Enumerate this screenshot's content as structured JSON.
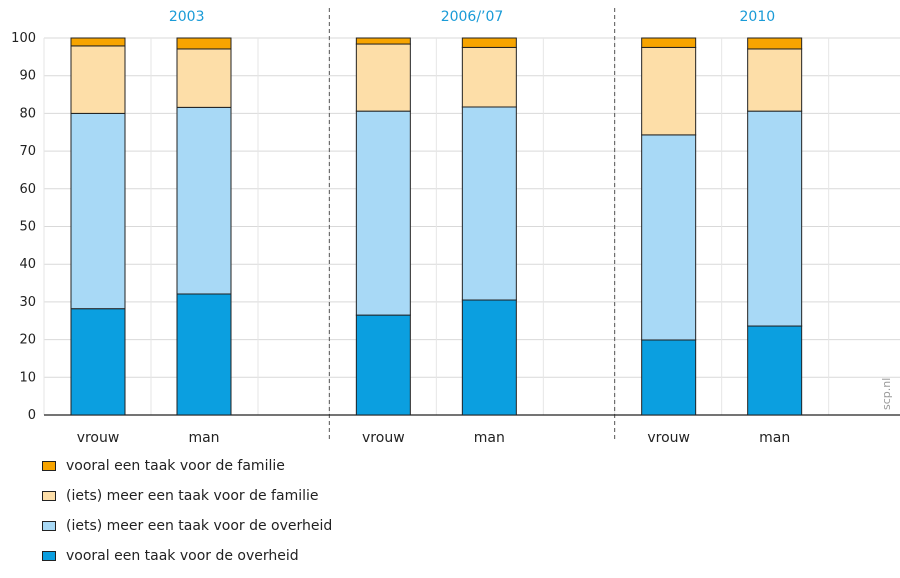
{
  "chart_data": {
    "type": "bar",
    "stacked": true,
    "ylim": [
      0,
      100
    ],
    "yticks": [
      0,
      10,
      20,
      30,
      40,
      50,
      60,
      70,
      80,
      90,
      100
    ],
    "grid": true,
    "groups": [
      {
        "label": "2003",
        "categories": [
          "vrouw",
          "man"
        ]
      },
      {
        "label": "2006/’07",
        "categories": [
          "vrouw",
          "man"
        ]
      },
      {
        "label": "2010",
        "categories": [
          "vrouw",
          "man"
        ]
      }
    ],
    "series": [
      {
        "name": "vooral een taak voor de overheid",
        "color": "#0b9fe0",
        "values": [
          28.2,
          32.1,
          26.5,
          30.5,
          19.9,
          23.6
        ]
      },
      {
        "name": "(iets) meer een taak voor de overheid",
        "color": "#a8d9f6",
        "values": [
          51.8,
          49.5,
          54.1,
          51.2,
          54.4,
          57.0
        ]
      },
      {
        "name": "(iets) meer een taak voor de familie",
        "color": "#fddea8",
        "values": [
          17.9,
          15.5,
          17.8,
          15.8,
          23.2,
          16.5
        ]
      },
      {
        "name": "vooral een taak voor de familie",
        "color": "#f7a400",
        "values": [
          2.1,
          2.9,
          1.6,
          2.5,
          2.5,
          2.9
        ]
      }
    ],
    "legend_position": "bottom-left",
    "legend_order": [
      3,
      2,
      1,
      0
    ]
  },
  "watermark": "scp.nl"
}
